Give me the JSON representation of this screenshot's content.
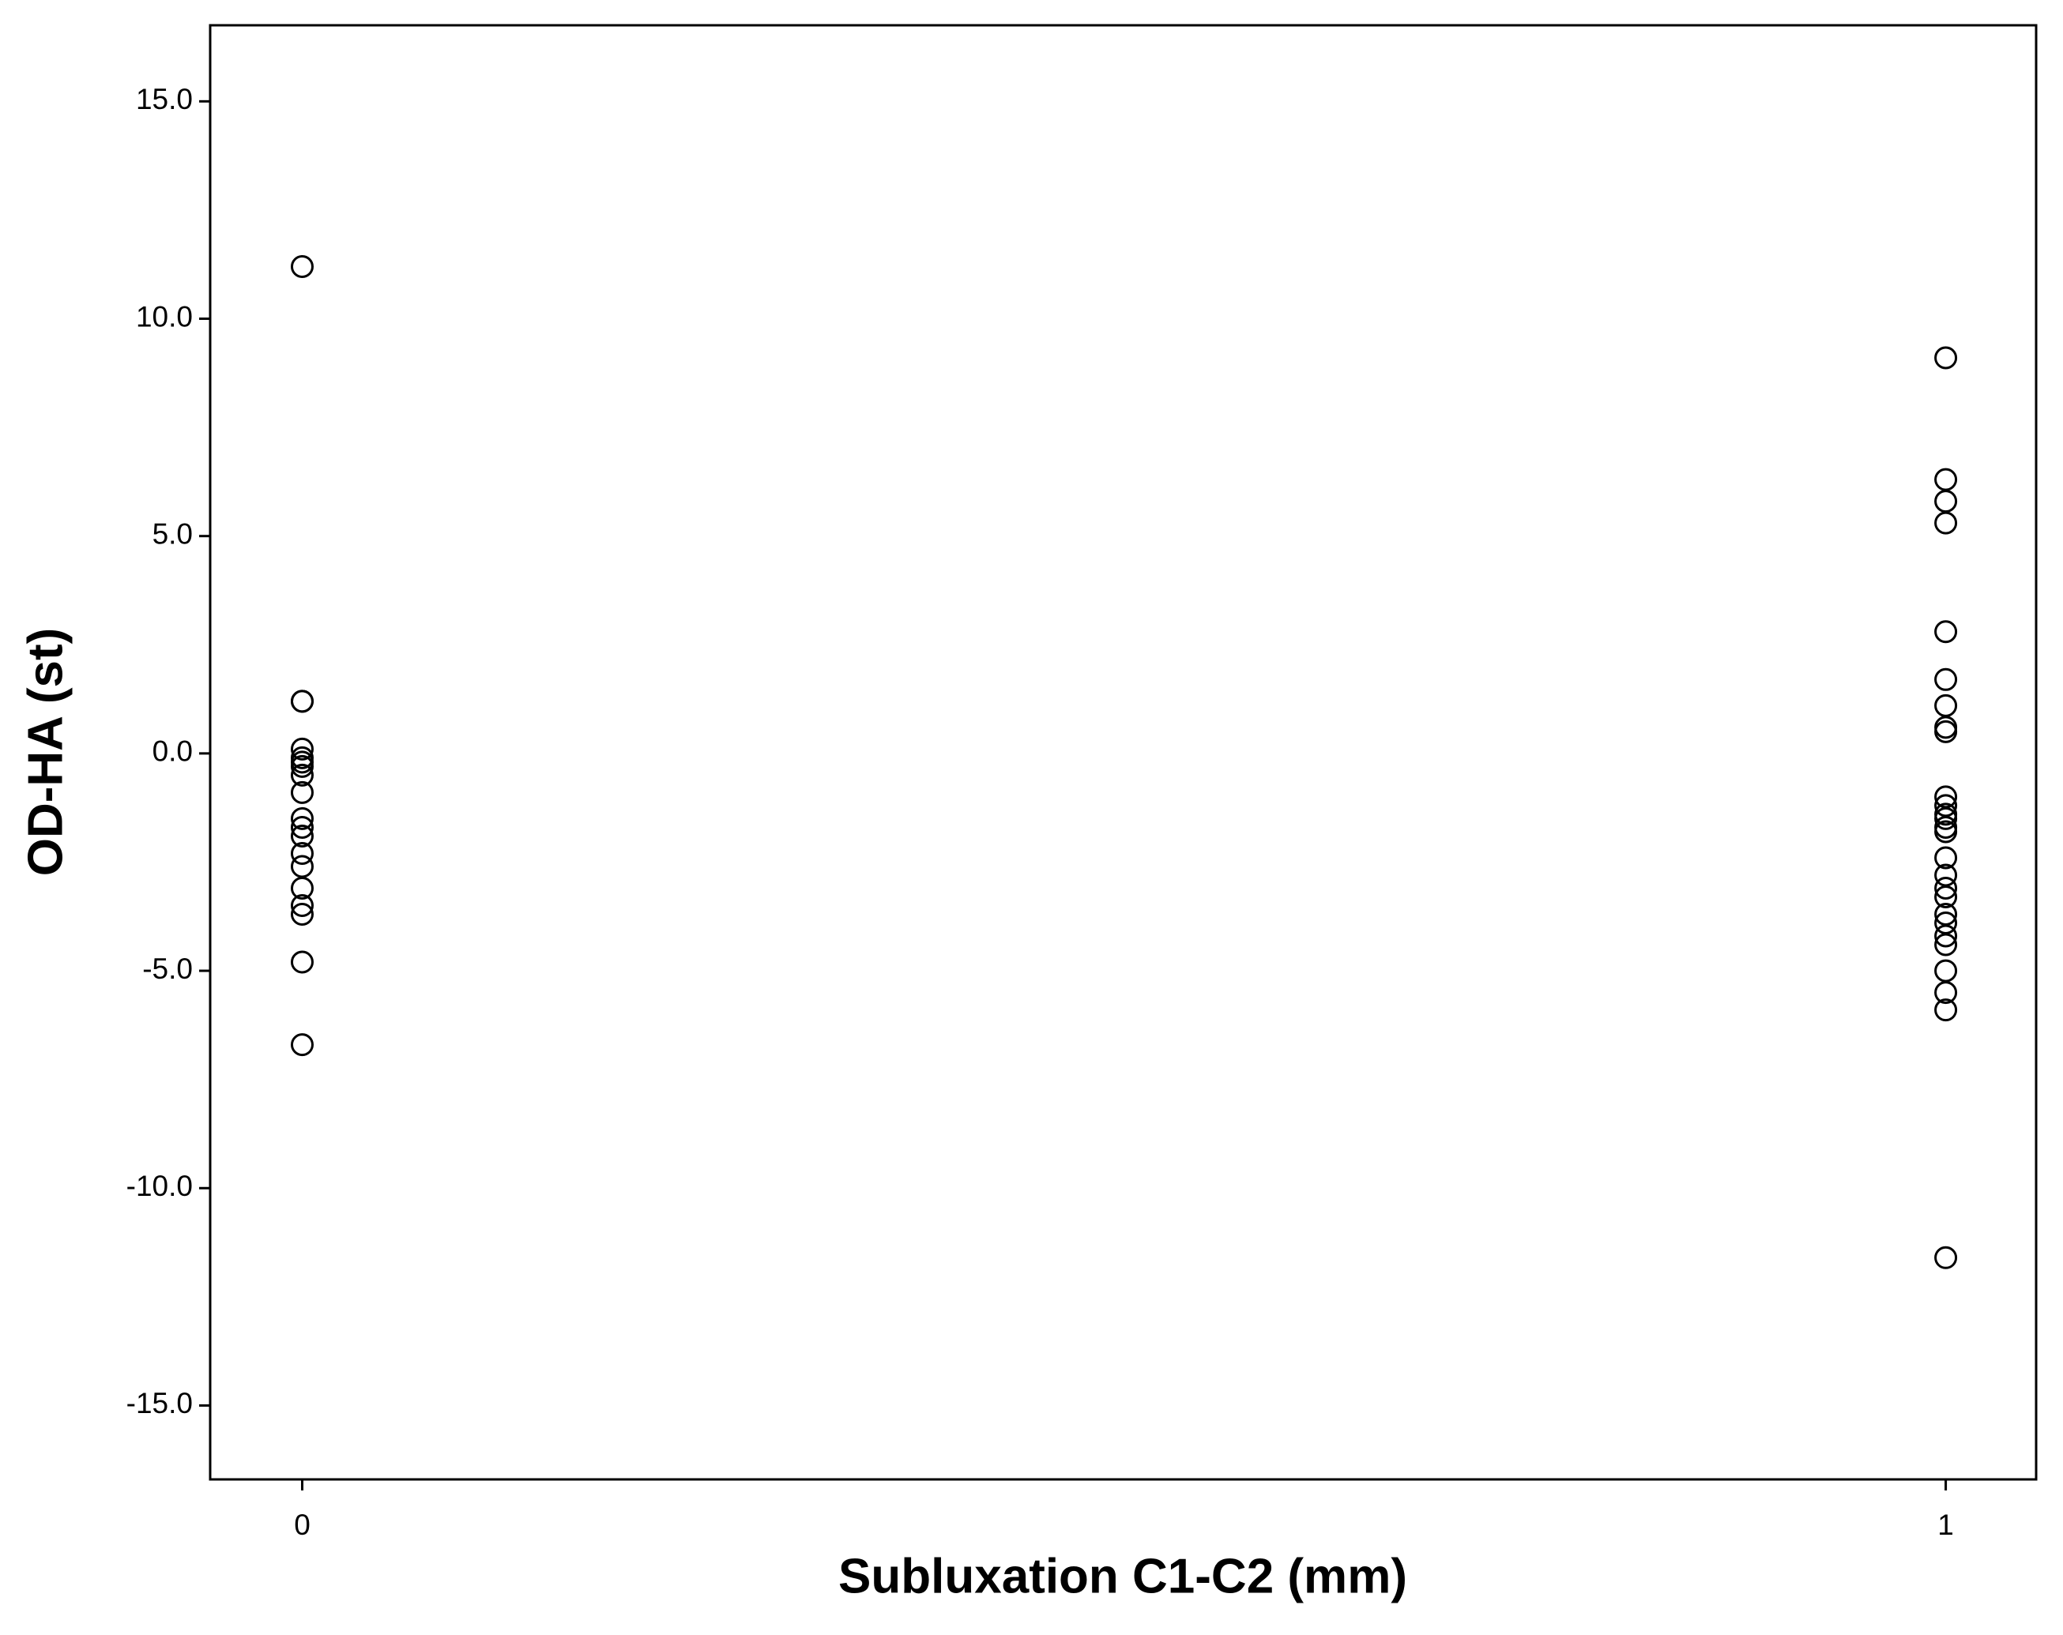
{
  "chart_data": {
    "type": "scatter",
    "x_label": "Subluxation C1-C2 (mm)",
    "y_label": "OD-HA (st)",
    "x": [
      0,
      0,
      0,
      0,
      0,
      0,
      0,
      0,
      0,
      0,
      0,
      0,
      0,
      0,
      0,
      0,
      0,
      0,
      0,
      1,
      1,
      1,
      1,
      1,
      1,
      1,
      1,
      1,
      1,
      1,
      1,
      1,
      1,
      1,
      1,
      1,
      1,
      1,
      1,
      1,
      1,
      1,
      1,
      1,
      1,
      1
    ],
    "values": [
      11.2,
      1.2,
      1.2,
      0.1,
      -0.1,
      -0.2,
      -0.3,
      -0.5,
      -0.9,
      -1.5,
      -1.7,
      -1.9,
      -2.3,
      -2.6,
      -3.1,
      -3.5,
      -3.7,
      -4.8,
      -6.7,
      9.1,
      6.3,
      5.8,
      5.3,
      2.8,
      1.7,
      1.1,
      0.6,
      0.5,
      -1.0,
      -1.2,
      -1.4,
      -1.5,
      -1.7,
      -1.8,
      -2.4,
      -2.8,
      -3.1,
      -3.3,
      -3.7,
      -3.9,
      -4.2,
      -4.4,
      -5.0,
      -5.5,
      -5.9,
      -11.6
    ],
    "color": "#000000",
    "xlim": [
      -0.056,
      1.055
    ],
    "xticks": [
      0,
      1
    ],
    "ylim": [
      -16.7,
      16.75
    ],
    "yticks": [
      {
        "value": 15,
        "label": "15.0"
      },
      {
        "value": 10,
        "label": "10.0"
      },
      {
        "value": 5,
        "label": "5.0"
      },
      {
        "value": 0,
        "label": "0.0"
      },
      {
        "value": -5,
        "label": "-5.0"
      },
      {
        "value": -10,
        "label": "-10.0"
      },
      {
        "value": -15,
        "label": "-15.0"
      }
    ]
  }
}
